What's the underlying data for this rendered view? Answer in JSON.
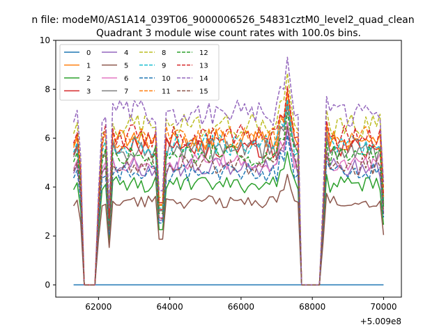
{
  "figure": {
    "suptitle": "n file: modeM0/AS1A14_039T06_9000006526_54831cztM0_level2_quad_clean",
    "offset_label": "+5.009e8"
  },
  "chart_data": {
    "type": "line",
    "title": "Quadrant 3 module wise count rates with 100.0s bins.",
    "xlabel": "",
    "ylabel": "",
    "x_offset": 500900000,
    "xlim": [
      60800,
      70500
    ],
    "ylim": [
      -0.5,
      10.0
    ],
    "xticks": [
      62000,
      64000,
      66000,
      68000,
      70000
    ],
    "xtick_labels": [
      "62000",
      "64000",
      "66000",
      "68000",
      "70000"
    ],
    "yticks": [
      0,
      2,
      4,
      6,
      8,
      10
    ],
    "ytick_labels": [
      "0",
      "2",
      "4",
      "6",
      "8",
      "10"
    ],
    "grid": false,
    "legend_placement": "upper-left",
    "legend_columns": 4,
    "x": [
      61300,
      61400,
      61500,
      61600,
      61700,
      61800,
      61900,
      62000,
      62100,
      62200,
      62300,
      62400,
      62500,
      62600,
      62700,
      62800,
      62900,
      63000,
      63100,
      63200,
      63300,
      63400,
      63500,
      63600,
      63700,
      63800,
      63900,
      64000,
      64100,
      64200,
      64300,
      64400,
      64500,
      64600,
      64700,
      64800,
      64900,
      65000,
      65100,
      65200,
      65300,
      65400,
      65500,
      65600,
      65700,
      65800,
      65900,
      66000,
      66100,
      66200,
      66300,
      66400,
      66500,
      66600,
      66700,
      66800,
      66900,
      67000,
      67100,
      67200,
      67300,
      67400,
      67500,
      67600,
      67700,
      67800,
      67900,
      68000,
      68100,
      68200,
      68300,
      68400,
      68500,
      68600,
      68700,
      68800,
      68900,
      69000,
      69100,
      69200,
      69300,
      69400,
      69500,
      69600,
      69700,
      69800,
      69900,
      70000
    ],
    "series": [
      {
        "name": "0",
        "color": "#1f77b4",
        "dash": "solid",
        "base": 0.0,
        "zero": true
      },
      {
        "name": "1",
        "color": "#ff7f0e",
        "dash": "solid",
        "base": 5.9
      },
      {
        "name": "2",
        "color": "#2ca02c",
        "dash": "solid",
        "base": 4.1
      },
      {
        "name": "3",
        "color": "#d62728",
        "dash": "solid",
        "base": 5.6
      },
      {
        "name": "4",
        "color": "#9467bd",
        "dash": "solid",
        "base": 4.8
      },
      {
        "name": "5",
        "color": "#8c564b",
        "dash": "solid",
        "base": 3.4
      },
      {
        "name": "6",
        "color": "#e377c2",
        "dash": "solid",
        "base": 5.0
      },
      {
        "name": "7",
        "color": "#7f7f7f",
        "dash": "solid",
        "base": 5.5
      },
      {
        "name": "8",
        "color": "#bcbd22",
        "dash": "dashed",
        "base": 6.5
      },
      {
        "name": "9",
        "color": "#17becf",
        "dash": "dashed",
        "base": 5.7
      },
      {
        "name": "10",
        "color": "#1f77b4",
        "dash": "dashed",
        "base": 4.6
      },
      {
        "name": "11",
        "color": "#ff7f0e",
        "dash": "dashed",
        "base": 6.0
      },
      {
        "name": "12",
        "color": "#2ca02c",
        "dash": "dashed",
        "base": 5.3
      },
      {
        "name": "13",
        "color": "#d62728",
        "dash": "dashed",
        "base": 6.1
      },
      {
        "name": "14",
        "color": "#9467bd",
        "dash": "dashed",
        "base": 7.0
      },
      {
        "name": "15",
        "color": "#8c564b",
        "dash": "dashed",
        "base": 4.9
      }
    ]
  }
}
